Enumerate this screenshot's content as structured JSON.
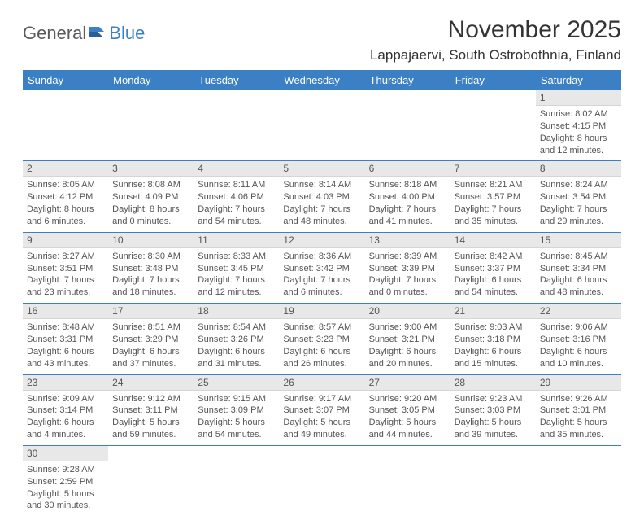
{
  "logo": {
    "general": "General",
    "blue": "Blue"
  },
  "title": "November 2025",
  "location": "Lappajaervi, South Ostrobothnia, Finland",
  "colors": {
    "header_bg": "#3b7fc4",
    "header_text": "#ffffff",
    "daynum_bg": "#e8e8e8",
    "border": "#3b7fc4",
    "text": "#555555"
  },
  "day_headers": [
    "Sunday",
    "Monday",
    "Tuesday",
    "Wednesday",
    "Thursday",
    "Friday",
    "Saturday"
  ],
  "weeks": [
    [
      {
        "n": "",
        "sunrise": "",
        "sunset": "",
        "daylight": ""
      },
      {
        "n": "",
        "sunrise": "",
        "sunset": "",
        "daylight": ""
      },
      {
        "n": "",
        "sunrise": "",
        "sunset": "",
        "daylight": ""
      },
      {
        "n": "",
        "sunrise": "",
        "sunset": "",
        "daylight": ""
      },
      {
        "n": "",
        "sunrise": "",
        "sunset": "",
        "daylight": ""
      },
      {
        "n": "",
        "sunrise": "",
        "sunset": "",
        "daylight": ""
      },
      {
        "n": "1",
        "sunrise": "Sunrise: 8:02 AM",
        "sunset": "Sunset: 4:15 PM",
        "daylight": "Daylight: 8 hours and 12 minutes."
      }
    ],
    [
      {
        "n": "2",
        "sunrise": "Sunrise: 8:05 AM",
        "sunset": "Sunset: 4:12 PM",
        "daylight": "Daylight: 8 hours and 6 minutes."
      },
      {
        "n": "3",
        "sunrise": "Sunrise: 8:08 AM",
        "sunset": "Sunset: 4:09 PM",
        "daylight": "Daylight: 8 hours and 0 minutes."
      },
      {
        "n": "4",
        "sunrise": "Sunrise: 8:11 AM",
        "sunset": "Sunset: 4:06 PM",
        "daylight": "Daylight: 7 hours and 54 minutes."
      },
      {
        "n": "5",
        "sunrise": "Sunrise: 8:14 AM",
        "sunset": "Sunset: 4:03 PM",
        "daylight": "Daylight: 7 hours and 48 minutes."
      },
      {
        "n": "6",
        "sunrise": "Sunrise: 8:18 AM",
        "sunset": "Sunset: 4:00 PM",
        "daylight": "Daylight: 7 hours and 41 minutes."
      },
      {
        "n": "7",
        "sunrise": "Sunrise: 8:21 AM",
        "sunset": "Sunset: 3:57 PM",
        "daylight": "Daylight: 7 hours and 35 minutes."
      },
      {
        "n": "8",
        "sunrise": "Sunrise: 8:24 AM",
        "sunset": "Sunset: 3:54 PM",
        "daylight": "Daylight: 7 hours and 29 minutes."
      }
    ],
    [
      {
        "n": "9",
        "sunrise": "Sunrise: 8:27 AM",
        "sunset": "Sunset: 3:51 PM",
        "daylight": "Daylight: 7 hours and 23 minutes."
      },
      {
        "n": "10",
        "sunrise": "Sunrise: 8:30 AM",
        "sunset": "Sunset: 3:48 PM",
        "daylight": "Daylight: 7 hours and 18 minutes."
      },
      {
        "n": "11",
        "sunrise": "Sunrise: 8:33 AM",
        "sunset": "Sunset: 3:45 PM",
        "daylight": "Daylight: 7 hours and 12 minutes."
      },
      {
        "n": "12",
        "sunrise": "Sunrise: 8:36 AM",
        "sunset": "Sunset: 3:42 PM",
        "daylight": "Daylight: 7 hours and 6 minutes."
      },
      {
        "n": "13",
        "sunrise": "Sunrise: 8:39 AM",
        "sunset": "Sunset: 3:39 PM",
        "daylight": "Daylight: 7 hours and 0 minutes."
      },
      {
        "n": "14",
        "sunrise": "Sunrise: 8:42 AM",
        "sunset": "Sunset: 3:37 PM",
        "daylight": "Daylight: 6 hours and 54 minutes."
      },
      {
        "n": "15",
        "sunrise": "Sunrise: 8:45 AM",
        "sunset": "Sunset: 3:34 PM",
        "daylight": "Daylight: 6 hours and 48 minutes."
      }
    ],
    [
      {
        "n": "16",
        "sunrise": "Sunrise: 8:48 AM",
        "sunset": "Sunset: 3:31 PM",
        "daylight": "Daylight: 6 hours and 43 minutes."
      },
      {
        "n": "17",
        "sunrise": "Sunrise: 8:51 AM",
        "sunset": "Sunset: 3:29 PM",
        "daylight": "Daylight: 6 hours and 37 minutes."
      },
      {
        "n": "18",
        "sunrise": "Sunrise: 8:54 AM",
        "sunset": "Sunset: 3:26 PM",
        "daylight": "Daylight: 6 hours and 31 minutes."
      },
      {
        "n": "19",
        "sunrise": "Sunrise: 8:57 AM",
        "sunset": "Sunset: 3:23 PM",
        "daylight": "Daylight: 6 hours and 26 minutes."
      },
      {
        "n": "20",
        "sunrise": "Sunrise: 9:00 AM",
        "sunset": "Sunset: 3:21 PM",
        "daylight": "Daylight: 6 hours and 20 minutes."
      },
      {
        "n": "21",
        "sunrise": "Sunrise: 9:03 AM",
        "sunset": "Sunset: 3:18 PM",
        "daylight": "Daylight: 6 hours and 15 minutes."
      },
      {
        "n": "22",
        "sunrise": "Sunrise: 9:06 AM",
        "sunset": "Sunset: 3:16 PM",
        "daylight": "Daylight: 6 hours and 10 minutes."
      }
    ],
    [
      {
        "n": "23",
        "sunrise": "Sunrise: 9:09 AM",
        "sunset": "Sunset: 3:14 PM",
        "daylight": "Daylight: 6 hours and 4 minutes."
      },
      {
        "n": "24",
        "sunrise": "Sunrise: 9:12 AM",
        "sunset": "Sunset: 3:11 PM",
        "daylight": "Daylight: 5 hours and 59 minutes."
      },
      {
        "n": "25",
        "sunrise": "Sunrise: 9:15 AM",
        "sunset": "Sunset: 3:09 PM",
        "daylight": "Daylight: 5 hours and 54 minutes."
      },
      {
        "n": "26",
        "sunrise": "Sunrise: 9:17 AM",
        "sunset": "Sunset: 3:07 PM",
        "daylight": "Daylight: 5 hours and 49 minutes."
      },
      {
        "n": "27",
        "sunrise": "Sunrise: 9:20 AM",
        "sunset": "Sunset: 3:05 PM",
        "daylight": "Daylight: 5 hours and 44 minutes."
      },
      {
        "n": "28",
        "sunrise": "Sunrise: 9:23 AM",
        "sunset": "Sunset: 3:03 PM",
        "daylight": "Daylight: 5 hours and 39 minutes."
      },
      {
        "n": "29",
        "sunrise": "Sunrise: 9:26 AM",
        "sunset": "Sunset: 3:01 PM",
        "daylight": "Daylight: 5 hours and 35 minutes."
      }
    ],
    [
      {
        "n": "30",
        "sunrise": "Sunrise: 9:28 AM",
        "sunset": "Sunset: 2:59 PM",
        "daylight": "Daylight: 5 hours and 30 minutes."
      },
      {
        "n": "",
        "sunrise": "",
        "sunset": "",
        "daylight": ""
      },
      {
        "n": "",
        "sunrise": "",
        "sunset": "",
        "daylight": ""
      },
      {
        "n": "",
        "sunrise": "",
        "sunset": "",
        "daylight": ""
      },
      {
        "n": "",
        "sunrise": "",
        "sunset": "",
        "daylight": ""
      },
      {
        "n": "",
        "sunrise": "",
        "sunset": "",
        "daylight": ""
      },
      {
        "n": "",
        "sunrise": "",
        "sunset": "",
        "daylight": ""
      }
    ]
  ]
}
